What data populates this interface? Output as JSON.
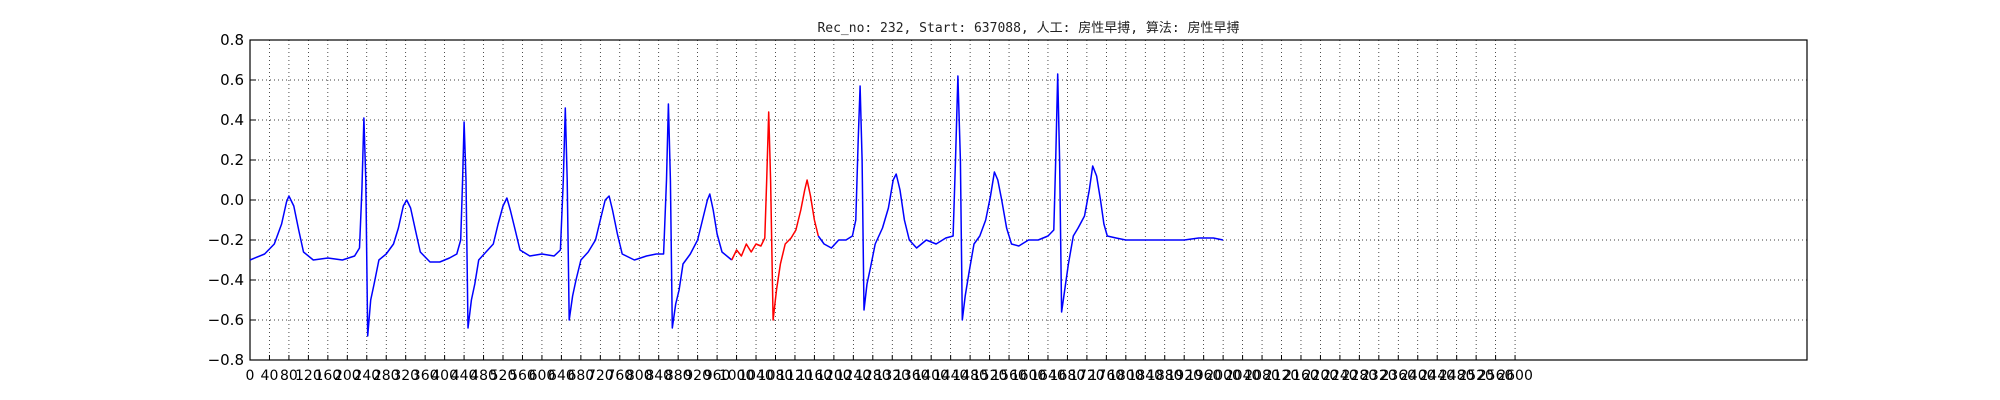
{
  "chart_data": {
    "type": "line",
    "title": "Rec_no: 232, Start: 637088, 人工: 房性早搏, 算法: 房性早搏",
    "xlabel": "",
    "ylabel": "",
    "xlim": [
      0,
      3200
    ],
    "ylim": [
      -0.8,
      0.8
    ],
    "grid": true,
    "y_ticks": [
      -0.8,
      -0.6,
      -0.4,
      -0.2,
      0.0,
      0.2,
      0.4,
      0.6,
      0.8
    ],
    "y_tick_labels": [
      "−0.8",
      "−0.6",
      "−0.4",
      "−0.2",
      "0.0",
      "0.2",
      "0.4",
      "0.6",
      "0.8"
    ],
    "x_ticks": [
      0,
      40,
      80,
      120,
      160,
      200,
      240,
      280,
      320,
      360,
      400,
      440,
      480,
      520,
      560,
      600,
      640,
      680,
      720,
      760,
      800,
      840,
      880,
      920,
      960,
      1000,
      1040,
      1080,
      1120,
      1160,
      1200,
      1240,
      1280,
      1320,
      1360,
      1400,
      1440,
      1480,
      1520,
      1560,
      1600,
      1640,
      1680,
      1720,
      1760,
      1800,
      1840,
      1880,
      1920,
      1960,
      2000,
      2040,
      2080,
      2120,
      2160,
      2200,
      2240,
      2280,
      2320,
      2360,
      2400,
      2440,
      2480,
      2520,
      2560,
      2600
    ],
    "series": [
      {
        "color": "#0000ff",
        "points": [
          [
            0,
            -0.3
          ],
          [
            30,
            -0.27
          ],
          [
            50,
            -0.22
          ],
          [
            65,
            -0.12
          ],
          [
            75,
            -0.01
          ],
          [
            80,
            0.02
          ],
          [
            90,
            -0.03
          ],
          [
            100,
            -0.15
          ],
          [
            110,
            -0.26
          ],
          [
            130,
            -0.3
          ],
          [
            160,
            -0.29
          ],
          [
            190,
            -0.3
          ],
          [
            215,
            -0.28
          ],
          [
            225,
            -0.24
          ],
          [
            230,
            0.05
          ],
          [
            234,
            0.41
          ],
          [
            238,
            0.1
          ],
          [
            242,
            -0.68
          ],
          [
            248,
            -0.5
          ],
          [
            255,
            -0.42
          ],
          [
            265,
            -0.3
          ],
          [
            280,
            -0.27
          ],
          [
            295,
            -0.22
          ],
          [
            305,
            -0.14
          ],
          [
            315,
            -0.03
          ],
          [
            322,
            0.0
          ],
          [
            330,
            -0.04
          ],
          [
            340,
            -0.15
          ],
          [
            350,
            -0.26
          ],
          [
            370,
            -0.31
          ],
          [
            390,
            -0.31
          ],
          [
            410,
            -0.29
          ],
          [
            425,
            -0.27
          ],
          [
            433,
            -0.2
          ],
          [
            437,
            0.1
          ],
          [
            440,
            0.39
          ],
          [
            444,
            0.1
          ],
          [
            448,
            -0.64
          ],
          [
            455,
            -0.5
          ],
          [
            462,
            -0.42
          ],
          [
            470,
            -0.3
          ],
          [
            485,
            -0.26
          ],
          [
            500,
            -0.22
          ],
          [
            510,
            -0.12
          ],
          [
            520,
            -0.03
          ],
          [
            528,
            0.01
          ],
          [
            535,
            -0.05
          ],
          [
            545,
            -0.15
          ],
          [
            555,
            -0.25
          ],
          [
            575,
            -0.28
          ],
          [
            600,
            -0.27
          ],
          [
            625,
            -0.28
          ],
          [
            638,
            -0.25
          ],
          [
            644,
            0.1
          ],
          [
            648,
            0.46
          ],
          [
            652,
            0.1
          ],
          [
            656,
            -0.6
          ],
          [
            663,
            -0.48
          ],
          [
            670,
            -0.4
          ],
          [
            680,
            -0.3
          ],
          [
            695,
            -0.26
          ],
          [
            710,
            -0.2
          ],
          [
            720,
            -0.1
          ],
          [
            730,
            0.0
          ],
          [
            738,
            0.02
          ],
          [
            745,
            -0.05
          ],
          [
            755,
            -0.17
          ],
          [
            765,
            -0.27
          ],
          [
            790,
            -0.3
          ],
          [
            815,
            -0.28
          ],
          [
            835,
            -0.27
          ],
          [
            850,
            -0.27
          ],
          [
            856,
            0.1
          ],
          [
            860,
            0.48
          ],
          [
            864,
            0.1
          ],
          [
            868,
            -0.64
          ],
          [
            875,
            -0.52
          ],
          [
            882,
            -0.45
          ],
          [
            890,
            -0.32
          ],
          [
            905,
            -0.27
          ],
          [
            920,
            -0.2
          ],
          [
            930,
            -0.1
          ],
          [
            940,
            0.0
          ],
          [
            945,
            0.03
          ],
          [
            952,
            -0.05
          ],
          [
            960,
            -0.17
          ],
          [
            970,
            -0.26
          ],
          [
            990,
            -0.3
          ]
        ]
      },
      {
        "color": "#ff0000",
        "points": [
          [
            990,
            -0.3
          ],
          [
            1000,
            -0.25
          ],
          [
            1010,
            -0.28
          ],
          [
            1020,
            -0.22
          ],
          [
            1030,
            -0.26
          ],
          [
            1040,
            -0.22
          ],
          [
            1050,
            -0.23
          ],
          [
            1058,
            -0.19
          ],
          [
            1062,
            0.1
          ],
          [
            1066,
            0.44
          ],
          [
            1070,
            0.1
          ],
          [
            1075,
            -0.6
          ],
          [
            1082,
            -0.45
          ],
          [
            1090,
            -0.32
          ],
          [
            1100,
            -0.22
          ],
          [
            1112,
            -0.19
          ],
          [
            1122,
            -0.15
          ],
          [
            1132,
            -0.05
          ],
          [
            1140,
            0.05
          ],
          [
            1145,
            0.1
          ],
          [
            1152,
            0.02
          ],
          [
            1160,
            -0.1
          ],
          [
            1168,
            -0.18
          ]
        ]
      },
      {
        "color": "#0000ff",
        "points": [
          [
            1168,
            -0.18
          ],
          [
            1180,
            -0.22
          ],
          [
            1195,
            -0.24
          ],
          [
            1210,
            -0.2
          ],
          [
            1225,
            -0.2
          ],
          [
            1238,
            -0.18
          ],
          [
            1245,
            -0.1
          ],
          [
            1250,
            0.3
          ],
          [
            1254,
            0.57
          ],
          [
            1258,
            0.2
          ],
          [
            1262,
            -0.55
          ],
          [
            1268,
            -0.42
          ],
          [
            1275,
            -0.34
          ],
          [
            1285,
            -0.22
          ],
          [
            1300,
            -0.14
          ],
          [
            1312,
            -0.04
          ],
          [
            1322,
            0.1
          ],
          [
            1328,
            0.13
          ],
          [
            1336,
            0.05
          ],
          [
            1345,
            -0.1
          ],
          [
            1355,
            -0.2
          ],
          [
            1370,
            -0.24
          ],
          [
            1390,
            -0.2
          ],
          [
            1410,
            -0.22
          ],
          [
            1430,
            -0.19
          ],
          [
            1445,
            -0.18
          ],
          [
            1450,
            0.2
          ],
          [
            1455,
            0.62
          ],
          [
            1460,
            0.2
          ],
          [
            1464,
            -0.6
          ],
          [
            1470,
            -0.48
          ],
          [
            1478,
            -0.36
          ],
          [
            1488,
            -0.22
          ],
          [
            1500,
            -0.18
          ],
          [
            1512,
            -0.1
          ],
          [
            1522,
            0.02
          ],
          [
            1530,
            0.14
          ],
          [
            1537,
            0.1
          ],
          [
            1545,
            0.0
          ],
          [
            1555,
            -0.14
          ],
          [
            1565,
            -0.22
          ],
          [
            1580,
            -0.23
          ],
          [
            1600,
            -0.2
          ],
          [
            1620,
            -0.2
          ],
          [
            1640,
            -0.18
          ],
          [
            1652,
            -0.15
          ],
          [
            1656,
            0.2
          ],
          [
            1660,
            0.63
          ],
          [
            1664,
            0.2
          ],
          [
            1668,
            -0.56
          ],
          [
            1675,
            -0.44
          ],
          [
            1682,
            -0.32
          ],
          [
            1692,
            -0.18
          ],
          [
            1702,
            -0.14
          ],
          [
            1715,
            -0.08
          ],
          [
            1725,
            0.05
          ],
          [
            1732,
            0.17
          ],
          [
            1740,
            0.12
          ],
          [
            1748,
            0.0
          ],
          [
            1755,
            -0.12
          ],
          [
            1762,
            -0.18
          ],
          [
            1780,
            -0.19
          ],
          [
            1800,
            -0.2
          ],
          [
            1830,
            -0.2
          ],
          [
            1860,
            -0.2
          ],
          [
            1890,
            -0.2
          ],
          [
            1920,
            -0.2
          ],
          [
            1950,
            -0.19
          ],
          [
            1980,
            -0.19
          ],
          [
            2000,
            -0.2
          ]
        ]
      }
    ]
  }
}
